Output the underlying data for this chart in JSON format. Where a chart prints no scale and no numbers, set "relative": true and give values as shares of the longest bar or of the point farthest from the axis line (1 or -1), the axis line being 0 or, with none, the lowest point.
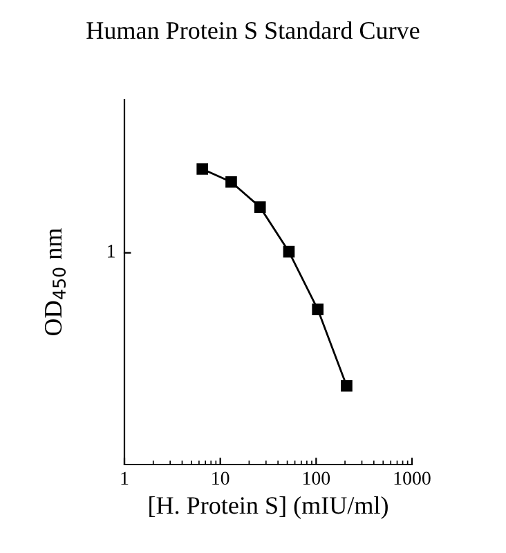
{
  "chart_data": {
    "type": "line",
    "title": "Human Protein S Standard Curve",
    "xlabel": "[H. Protein S] (mIU/ml)",
    "ylabel": "OD$_{450}$ nm",
    "x": [
      6.5,
      13,
      26,
      52,
      104,
      208
    ],
    "series": [
      {
        "color": "#000000",
        "values": [
          1,
          0.956,
          0.871,
          0.72,
          0.525,
          0.266
        ]
      }
    ],
    "relative": true,
    "log": "x",
    "xlim": [
      1,
      1000
    ],
    "xticks": [
      1,
      10,
      100,
      1000
    ],
    "annotations": [
      "1"
    ],
    "marker": "square",
    "line_style": "solid",
    "grid": false,
    "legend": false
  }
}
